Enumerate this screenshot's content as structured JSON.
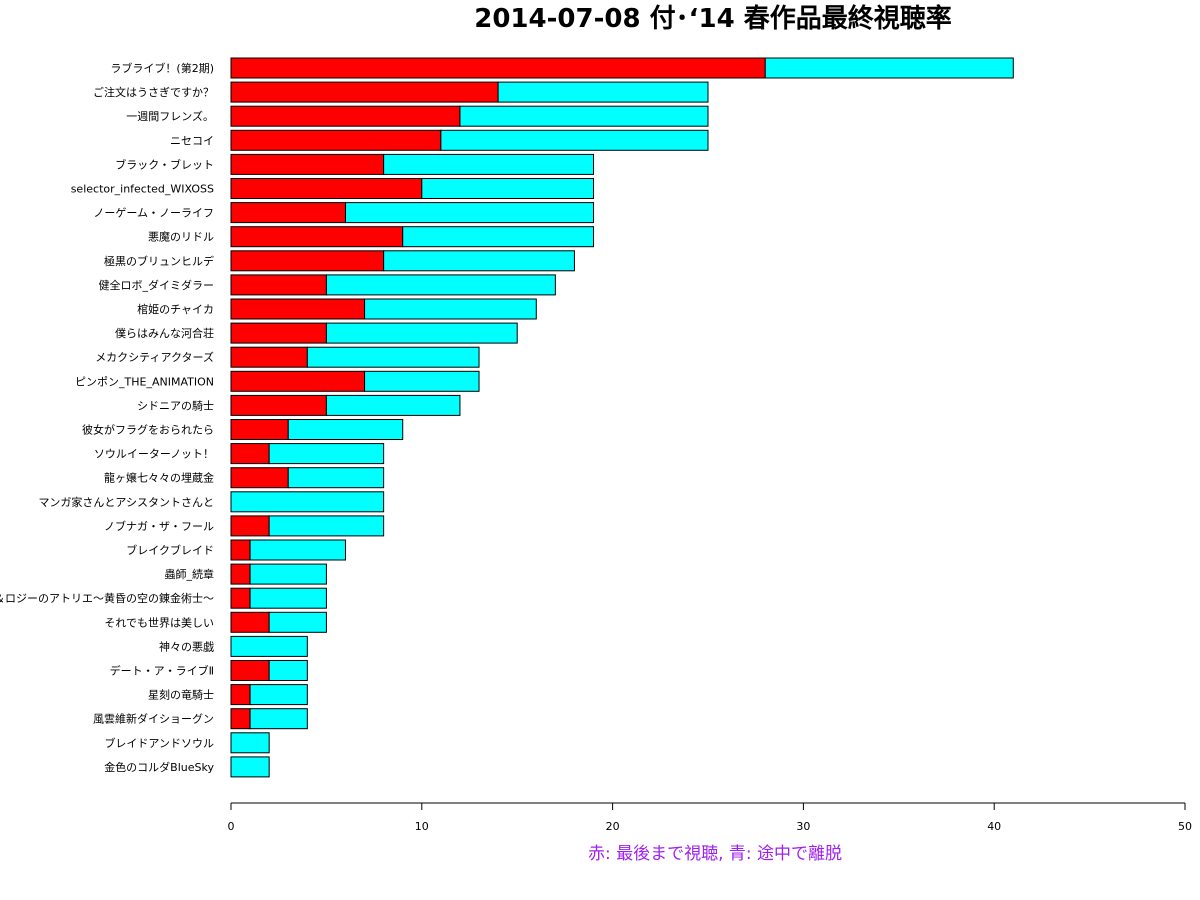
{
  "chart_data": {
    "type": "bar",
    "orientation": "horizontal",
    "stacked": true,
    "title": "2014-07-08 付･‘14 春作品最終視聴率",
    "xlabel": "赤: 最後まで視聴, 青: 途中で離脱",
    "xlim": [
      0,
      50
    ],
    "xticks": [
      "0",
      "10",
      "20",
      "30",
      "40",
      "50"
    ],
    "categories": [
      "ラブライブ！(第2期)",
      "ご注文はうさぎですか？",
      "一週間フレンズ。",
      "ニセコイ",
      "ブラック・ブレット",
      "selector_infected_WIXOSS",
      "ノーゲーム・ノーライフ",
      "悪魔のリドル",
      "極黒のブリュンヒルデ",
      "健全ロボ_ダイミダラー",
      "棺姫のチャイカ",
      "僕らはみんな河合荘",
      "メカクシティアクターズ",
      "ピンポン_THE_ANIMATION",
      "シドニアの騎士",
      "彼女がフラグをおられたら",
      "ソウルイーターノット！",
      "龍ヶ嬢七々々の埋蔵金",
      "マンガ家さんとアシスタントさんと",
      "ノブナガ・ザ・フール",
      "ブレイクブレイド",
      "蟲師_続章",
      "エスカ＆ロジーのアトリエ～黄昏の空の錬金術士～",
      "それでも世界は美しい",
      "神々の悪戯",
      "デート・ア・ライブⅡ",
      "星刻の竜騎士",
      "風雲維新ダイショーグン",
      "ブレイドアンドソウル",
      "金色のコルダBlueSky"
    ],
    "series": [
      {
        "name": "赤: 最後まで視聴",
        "color": "#ff0000",
        "values": [
          28,
          14,
          12,
          11,
          8,
          10,
          6,
          9,
          8,
          5,
          7,
          5,
          4,
          7,
          5,
          3,
          2,
          3,
          0,
          2,
          1,
          1,
          1,
          2,
          0,
          2,
          1,
          1,
          0,
          0
        ]
      },
      {
        "name": "青: 途中で離脱",
        "color": "#00ffff",
        "values": [
          13,
          11,
          13,
          14,
          11,
          9,
          13,
          10,
          10,
          12,
          9,
          10,
          9,
          6,
          7,
          6,
          6,
          5,
          8,
          6,
          5,
          4,
          4,
          3,
          4,
          2,
          3,
          3,
          2,
          2
        ]
      }
    ],
    "caption_color": "#a020f0",
    "grid": false,
    "legend": "none"
  }
}
